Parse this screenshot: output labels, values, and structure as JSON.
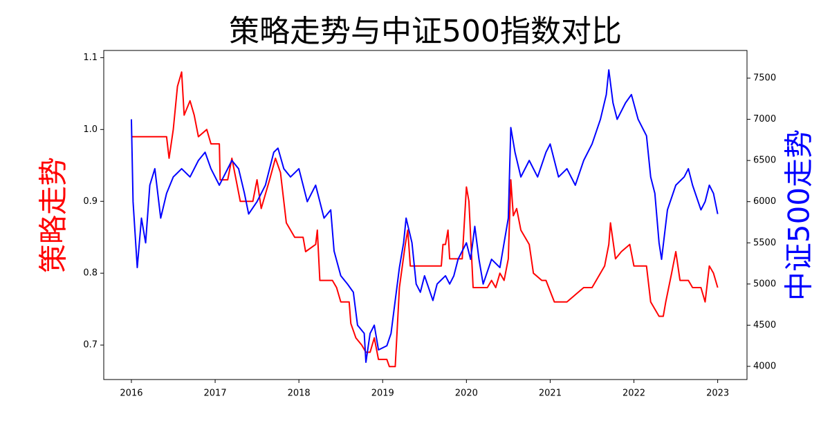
{
  "chart_data": {
    "type": "line",
    "title": "策略走势与中证500指数对比",
    "ylabel": "策略走势",
    "y2label": "中证500走势",
    "xlim": [
      2015.67,
      2023.35
    ],
    "xticks": [
      2016,
      2017,
      2018,
      2019,
      2020,
      2021,
      2022,
      2023
    ],
    "ylim": [
      0.652,
      1.11
    ],
    "yticks": [
      0.7,
      0.8,
      0.9,
      {
        "value": 1.0,
        "label": "1.0"
      },
      1.1
    ],
    "y2lim": [
      3840,
      7836
    ],
    "y2ticks": [
      4000,
      4500,
      5000,
      5500,
      6000,
      6500,
      7000,
      7500
    ],
    "series": [
      {
        "color": "#ff0000",
        "axis": "y",
        "x": [
          2016.0,
          2016.42,
          2016.45,
          2016.5,
          2016.55,
          2016.6,
          2016.63,
          2016.7,
          2016.75,
          2016.8,
          2016.9,
          2016.95,
          2017.05,
          2017.06,
          2017.15,
          2017.2,
          2017.25,
          2017.3,
          2017.45,
          2017.5,
          2017.55,
          2017.65,
          2017.72,
          2017.78,
          2017.82,
          2017.85,
          2017.95,
          2018.05,
          2018.08,
          2018.2,
          2018.22,
          2018.25,
          2018.4,
          2018.45,
          2018.5,
          2018.6,
          2018.62,
          2018.68,
          2018.75,
          2018.8,
          2018.85,
          2018.9,
          2018.95,
          2019.05,
          2019.08,
          2019.15,
          2019.2,
          2019.27,
          2019.3,
          2019.33,
          2019.5,
          2019.7,
          2019.72,
          2019.75,
          2019.78,
          2019.8,
          2019.95,
          2019.98,
          2020.0,
          2020.03,
          2020.08,
          2020.25,
          2020.3,
          2020.35,
          2020.4,
          2020.45,
          2020.5,
          2020.53,
          2020.56,
          2020.6,
          2020.65,
          2020.75,
          2020.8,
          2020.9,
          2020.95,
          2021.05,
          2021.2,
          2021.3,
          2021.4,
          2021.5,
          2021.55,
          2021.65,
          2021.7,
          2021.72,
          2021.78,
          2021.85,
          2021.95,
          2022.0,
          2022.15,
          2022.2,
          2022.3,
          2022.35,
          2022.38,
          2022.45,
          2022.5,
          2022.55,
          2022.65,
          2022.7,
          2022.8,
          2022.85,
          2022.9,
          2022.95,
          2023.0
        ],
        "values": [
          0.99,
          0.99,
          0.96,
          1.0,
          1.06,
          1.08,
          1.02,
          1.04,
          1.02,
          0.99,
          1.0,
          0.98,
          0.98,
          0.93,
          0.93,
          0.96,
          0.93,
          0.9,
          0.9,
          0.93,
          0.89,
          0.93,
          0.96,
          0.94,
          0.9,
          0.87,
          0.85,
          0.85,
          0.83,
          0.84,
          0.86,
          0.79,
          0.79,
          0.78,
          0.76,
          0.76,
          0.73,
          0.71,
          0.7,
          0.69,
          0.69,
          0.71,
          0.68,
          0.68,
          0.67,
          0.67,
          0.78,
          0.84,
          0.86,
          0.81,
          0.81,
          0.81,
          0.84,
          0.84,
          0.86,
          0.82,
          0.82,
          0.88,
          0.92,
          0.9,
          0.78,
          0.78,
          0.79,
          0.78,
          0.8,
          0.79,
          0.82,
          0.93,
          0.88,
          0.89,
          0.86,
          0.84,
          0.8,
          0.79,
          0.79,
          0.76,
          0.76,
          0.77,
          0.78,
          0.78,
          0.79,
          0.81,
          0.84,
          0.87,
          0.82,
          0.83,
          0.84,
          0.81,
          0.81,
          0.76,
          0.74,
          0.74,
          0.76,
          0.8,
          0.83,
          0.79,
          0.79,
          0.78,
          0.78,
          0.76,
          0.81,
          0.8,
          0.78
        ]
      },
      {
        "color": "#0000ff",
        "axis": "y2",
        "x": [
          2016.0,
          2016.02,
          2016.07,
          2016.12,
          2016.17,
          2016.22,
          2016.28,
          2016.35,
          2016.42,
          2016.5,
          2016.6,
          2016.7,
          2016.8,
          2016.88,
          2016.95,
          2017.05,
          2017.1,
          2017.2,
          2017.28,
          2017.35,
          2017.4,
          2017.5,
          2017.6,
          2017.7,
          2017.75,
          2017.82,
          2017.9,
          2018.0,
          2018.05,
          2018.1,
          2018.2,
          2018.3,
          2018.38,
          2018.42,
          2018.5,
          2018.58,
          2018.65,
          2018.7,
          2018.78,
          2018.8,
          2018.85,
          2018.9,
          2018.95,
          2019.05,
          2019.1,
          2019.2,
          2019.25,
          2019.28,
          2019.35,
          2019.4,
          2019.45,
          2019.5,
          2019.6,
          2019.65,
          2019.75,
          2019.8,
          2019.85,
          2019.9,
          2020.0,
          2020.05,
          2020.1,
          2020.15,
          2020.2,
          2020.3,
          2020.4,
          2020.45,
          2020.5,
          2020.53,
          2020.58,
          2020.65,
          2020.75,
          2020.85,
          2020.95,
          2021.0,
          2021.05,
          2021.1,
          2021.2,
          2021.3,
          2021.4,
          2021.5,
          2021.6,
          2021.67,
          2021.7,
          2021.75,
          2021.8,
          2021.9,
          2021.97,
          2022.05,
          2022.15,
          2022.2,
          2022.25,
          2022.3,
          2022.33,
          2022.4,
          2022.5,
          2022.6,
          2022.65,
          2022.7,
          2022.8,
          2022.85,
          2022.9,
          2022.95,
          2023.0
        ],
        "values": [
          7000,
          6000,
          5200,
          5800,
          5500,
          6200,
          6400,
          5800,
          6100,
          6300,
          6400,
          6300,
          6500,
          6600,
          6400,
          6200,
          6300,
          6500,
          6400,
          6100,
          5850,
          6000,
          6200,
          6600,
          6650,
          6400,
          6300,
          6400,
          6200,
          6000,
          6200,
          5800,
          5900,
          5400,
          5100,
          5000,
          4900,
          4500,
          4400,
          4050,
          4400,
          4500,
          4200,
          4250,
          4400,
          5200,
          5500,
          5800,
          5500,
          5000,
          4900,
          5100,
          4800,
          5000,
          5100,
          5000,
          5100,
          5300,
          5500,
          5300,
          5700,
          5300,
          5000,
          5300,
          5200,
          5500,
          5800,
          6900,
          6600,
          6300,
          6500,
          6300,
          6600,
          6700,
          6500,
          6300,
          6400,
          6200,
          6500,
          6700,
          7000,
          7300,
          7600,
          7200,
          7000,
          7200,
          7300,
          7000,
          6800,
          6300,
          6100,
          5500,
          5300,
          5900,
          6200,
          6300,
          6400,
          6200,
          5900,
          6000,
          6200,
          6100,
          5850
        ]
      }
    ]
  }
}
